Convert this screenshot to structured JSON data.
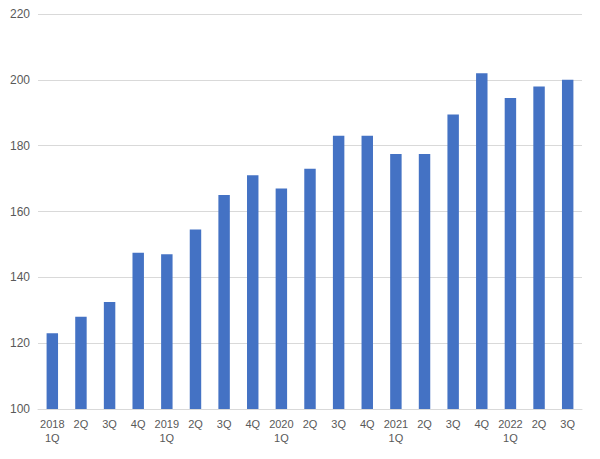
{
  "chart_data": {
    "type": "bar",
    "categories": [
      "2018\n1Q",
      "2Q",
      "3Q",
      "4Q",
      "2019\n1Q",
      "2Q",
      "3Q",
      "4Q",
      "2020\n1Q",
      "2Q",
      "3Q",
      "4Q",
      "2021\n1Q",
      "2Q",
      "3Q",
      "4Q",
      "2022\n1Q",
      "2Q",
      "3Q"
    ],
    "values": [
      123,
      128,
      132.5,
      147.5,
      147,
      154.5,
      165,
      171,
      167,
      173,
      183,
      183,
      177.5,
      177.5,
      189.5,
      202,
      194.5,
      198,
      200
    ],
    "color": "#4472c4",
    "ylim": [
      100,
      220
    ],
    "yticks": [
      100,
      120,
      140,
      160,
      180,
      200,
      220
    ],
    "grid": true
  }
}
